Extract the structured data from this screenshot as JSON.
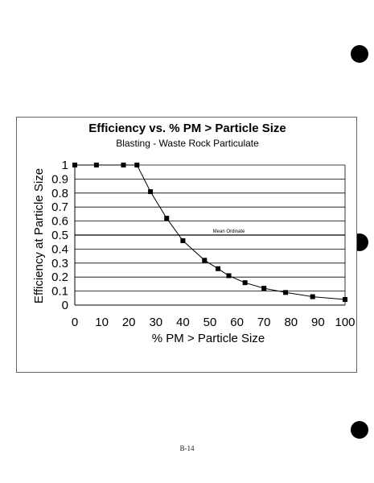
{
  "page": {
    "page_number": "B-14"
  },
  "chart_data": {
    "type": "line",
    "title": "Efficiency vs. % PM > Particle Size",
    "subtitle": "Blasting - Waste Rock Particulate",
    "xlabel": "% PM > Particle Size",
    "ylabel": "Efficiency at Particle Size",
    "xlim": [
      0,
      100
    ],
    "ylim": [
      0,
      1
    ],
    "x_ticks": [
      "0",
      "10",
      "20",
      "30",
      "40",
      "50",
      "60",
      "70",
      "80",
      "90",
      "100"
    ],
    "y_ticks": [
      "0",
      "0.1",
      "0.2",
      "0.3",
      "0.4",
      "0.5",
      "0.6",
      "0.7",
      "0.8",
      "0.9",
      "1"
    ],
    "grid": "horizontal",
    "legend": "none",
    "series": [
      {
        "color": "#000000",
        "marker": "square",
        "x": [
          0,
          8,
          18,
          23,
          28,
          34,
          40,
          48,
          53,
          57,
          63,
          70,
          78,
          88,
          100
        ],
        "y": [
          1.0,
          1.0,
          1.0,
          1.0,
          0.81,
          0.62,
          0.46,
          0.32,
          0.26,
          0.21,
          0.16,
          0.12,
          0.09,
          0.06,
          0.04
        ]
      }
    ],
    "annotations": [
      {
        "text": "Mean Ordinate",
        "x": 57,
        "y": 0.5
      }
    ],
    "reference_lines": [
      {
        "axis": "y",
        "value": 0.5
      }
    ]
  }
}
